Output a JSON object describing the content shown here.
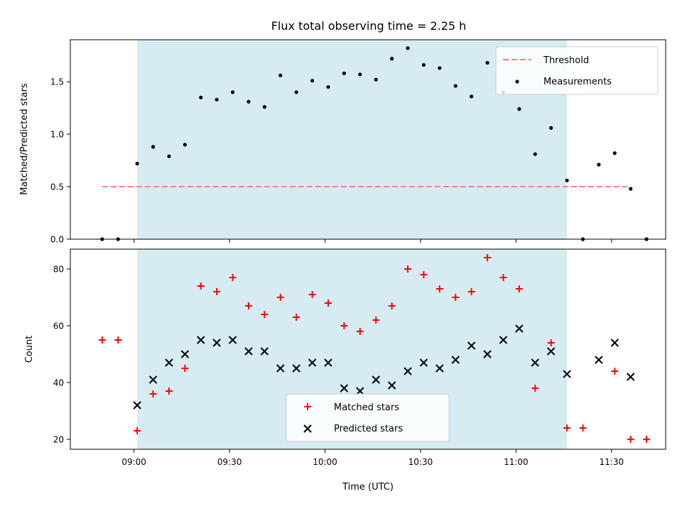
{
  "colors": {
    "matched": "#ff0000",
    "predicted": "#000000",
    "threshold": "#ff7f7f",
    "measurement": "#000000",
    "span": "#add8e6"
  },
  "chart_data": [
    {
      "type": "scatter",
      "title": "Flux total observing time = 2.25 h",
      "xlabel": "",
      "ylabel": "Matched/Predicted stars",
      "x_tick_labels": [
        "09:00",
        "09:30",
        "10:00",
        "10:30",
        "11:00",
        "11:30"
      ],
      "x_ticks_min": [
        540,
        570,
        600,
        630,
        660,
        690
      ],
      "xlim_min": [
        520,
        707
      ],
      "ylim": [
        0,
        1.9
      ],
      "y_ticks": [
        0.0,
        0.5,
        1.0,
        1.5
      ],
      "y_tick_labels": [
        "0.0",
        "0.5",
        "1.0",
        "1.5"
      ],
      "shaded_span_min": [
        541,
        676
      ],
      "threshold": {
        "name": "Threshold",
        "value": 0.5,
        "x_range_min": [
          530,
          695
        ]
      },
      "legend_position": "upper right",
      "series": [
        {
          "name": "Measurements",
          "x_min": [
            530,
            535,
            541,
            546,
            551,
            556,
            561,
            566,
            571,
            576,
            581,
            586,
            591,
            596,
            601,
            606,
            611,
            616,
            621,
            626,
            631,
            636,
            641,
            646,
            651,
            656,
            661,
            666,
            671,
            676,
            681,
            686,
            691,
            696,
            701
          ],
          "values": [
            0.0,
            0.0,
            0.72,
            0.88,
            0.79,
            0.9,
            1.35,
            1.33,
            1.4,
            1.31,
            1.26,
            1.56,
            1.4,
            1.51,
            1.45,
            1.58,
            1.57,
            1.52,
            1.72,
            1.82,
            1.66,
            1.63,
            1.46,
            1.36,
            1.68,
            1.4,
            1.24,
            0.81,
            1.06,
            0.56,
            0.0,
            0.71,
            0.82,
            0.48,
            0.0
          ]
        }
      ]
    },
    {
      "type": "scatter",
      "title": "",
      "xlabel": "Time (UTC)",
      "ylabel": "Count",
      "x_tick_labels": [
        "09:00",
        "09:30",
        "10:00",
        "10:30",
        "11:00",
        "11:30"
      ],
      "x_ticks_min": [
        540,
        570,
        600,
        630,
        660,
        690
      ],
      "xlim_min": [
        520,
        707
      ],
      "ylim": [
        16.5,
        87
      ],
      "y_ticks": [
        20,
        40,
        60,
        80
      ],
      "y_tick_labels": [
        "20",
        "40",
        "60",
        "80"
      ],
      "shaded_span_min": [
        541,
        676
      ],
      "legend_position": "lower center",
      "series": [
        {
          "name": "Matched stars",
          "marker": "plus",
          "x_min": [
            530,
            535,
            541,
            546,
            551,
            556,
            561,
            566,
            571,
            576,
            581,
            586,
            591,
            596,
            601,
            606,
            611,
            616,
            621,
            626,
            631,
            636,
            641,
            646,
            651,
            656,
            661,
            666,
            671,
            676,
            681,
            691,
            696,
            701
          ],
          "values": [
            55,
            55,
            23,
            36,
            37,
            45,
            74,
            72,
            77,
            67,
            64,
            70,
            63,
            71,
            68,
            60,
            58,
            62,
            67,
            80,
            78,
            73,
            70,
            72,
            84,
            77,
            73,
            38,
            54,
            24,
            24,
            44,
            20,
            20
          ]
        },
        {
          "name": "Predicted stars",
          "marker": "x",
          "x_min": [
            541,
            546,
            551,
            556,
            561,
            566,
            571,
            576,
            581,
            586,
            591,
            596,
            601,
            606,
            611,
            616,
            621,
            626,
            631,
            636,
            641,
            646,
            651,
            656,
            661,
            666,
            671,
            676,
            686,
            691,
            696
          ],
          "values": [
            32,
            41,
            47,
            50,
            55,
            54,
            55,
            51,
            51,
            45,
            45,
            47,
            47,
            38,
            37,
            41,
            39,
            44,
            47,
            45,
            48,
            53,
            50,
            55,
            59,
            47,
            51,
            43,
            48,
            54,
            42
          ]
        }
      ]
    }
  ]
}
